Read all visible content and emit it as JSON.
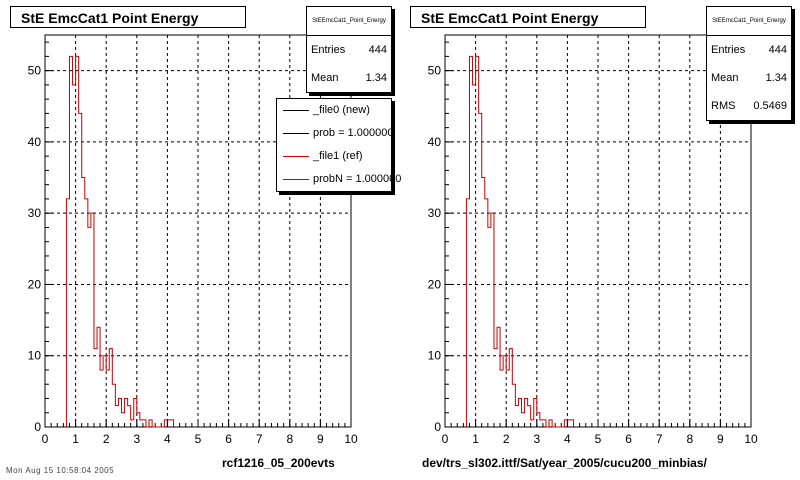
{
  "chart_data": [
    {
      "type": "histogram",
      "title": "StE EmcCat1 Point Energy",
      "stats": {
        "name": "StEEmcCat1_Point_Energy",
        "rows": [
          {
            "label": "Entries",
            "value": "444"
          },
          {
            "label": "Mean",
            "value": "1.34"
          }
        ]
      },
      "xlabel": "rcf1216_05_200evts",
      "xlim": [
        0,
        10
      ],
      "ylim": [
        0,
        55
      ],
      "xticks": [
        0,
        1,
        2,
        3,
        4,
        5,
        6,
        7,
        8,
        9,
        10
      ],
      "yticks": [
        0,
        10,
        20,
        30,
        40,
        50
      ],
      "grid": true,
      "bin_width": 0.1,
      "series": [
        {
          "name": "_file1 (ref)",
          "color": "#cc0000",
          "bins": [
            {
              "x": 0.7,
              "y": 32
            },
            {
              "x": 0.8,
              "y": 52
            },
            {
              "x": 0.9,
              "y": 48
            },
            {
              "x": 1.0,
              "y": 52
            },
            {
              "x": 1.1,
              "y": 44
            },
            {
              "x": 1.2,
              "y": 35
            },
            {
              "x": 1.3,
              "y": 32
            },
            {
              "x": 1.4,
              "y": 28
            },
            {
              "x": 1.5,
              "y": 30
            },
            {
              "x": 1.6,
              "y": 11
            },
            {
              "x": 1.7,
              "y": 14
            },
            {
              "x": 1.8,
              "y": 8
            },
            {
              "x": 1.9,
              "y": 10
            },
            {
              "x": 2.0,
              "y": 8
            },
            {
              "x": 2.1,
              "y": 11
            },
            {
              "x": 2.2,
              "y": 6
            },
            {
              "x": 2.3,
              "y": 3
            },
            {
              "x": 2.4,
              "y": 4
            },
            {
              "x": 2.5,
              "y": 2
            },
            {
              "x": 2.6,
              "y": 4
            },
            {
              "x": 2.7,
              "y": 3
            },
            {
              "x": 2.8,
              "y": 1
            },
            {
              "x": 2.9,
              "y": 4
            },
            {
              "x": 3.0,
              "y": 2
            },
            {
              "x": 3.1,
              "y": 1
            },
            {
              "x": 3.2,
              "y": 1
            },
            {
              "x": 3.3,
              "y": 0
            },
            {
              "x": 3.4,
              "y": 1
            },
            {
              "x": 3.5,
              "y": 0
            },
            {
              "x": 3.6,
              "y": 0
            },
            {
              "x": 3.7,
              "y": 0
            },
            {
              "x": 3.8,
              "y": 0
            },
            {
              "x": 3.9,
              "y": 1
            },
            {
              "x": 4.0,
              "y": 1
            },
            {
              "x": 4.1,
              "y": 1
            }
          ]
        }
      ]
    },
    {
      "type": "histogram",
      "title": "StE EmcCat1 Point Energy",
      "stats": {
        "name": "StEEmcCat1_Point_Energy",
        "rows": [
          {
            "label": "Entries",
            "value": "444"
          },
          {
            "label": "Mean",
            "value": "1.34"
          },
          {
            "label": "RMS",
            "value": "0.5469"
          }
        ]
      },
      "xlabel": "dev/trs_sl302.ittf/Sat/year_2005/cucu200_minbias/",
      "xlim": [
        0,
        10
      ],
      "ylim": [
        0,
        55
      ],
      "xticks": [
        0,
        1,
        2,
        3,
        4,
        5,
        6,
        7,
        8,
        9,
        10
      ],
      "yticks": [
        0,
        10,
        20,
        30,
        40,
        50
      ],
      "grid": true,
      "bin_width": 0.1,
      "series": [
        {
          "color": "#cc0000",
          "bins": [
            {
              "x": 0.7,
              "y": 32
            },
            {
              "x": 0.8,
              "y": 52
            },
            {
              "x": 0.9,
              "y": 48
            },
            {
              "x": 1.0,
              "y": 52
            },
            {
              "x": 1.1,
              "y": 44
            },
            {
              "x": 1.2,
              "y": 35
            },
            {
              "x": 1.3,
              "y": 32
            },
            {
              "x": 1.4,
              "y": 28
            },
            {
              "x": 1.5,
              "y": 30
            },
            {
              "x": 1.6,
              "y": 11
            },
            {
              "x": 1.7,
              "y": 14
            },
            {
              "x": 1.8,
              "y": 8
            },
            {
              "x": 1.9,
              "y": 10
            },
            {
              "x": 2.0,
              "y": 8
            },
            {
              "x": 2.1,
              "y": 11
            },
            {
              "x": 2.2,
              "y": 6
            },
            {
              "x": 2.3,
              "y": 3
            },
            {
              "x": 2.4,
              "y": 4
            },
            {
              "x": 2.5,
              "y": 2
            },
            {
              "x": 2.6,
              "y": 4
            },
            {
              "x": 2.7,
              "y": 3
            },
            {
              "x": 2.8,
              "y": 1
            },
            {
              "x": 2.9,
              "y": 4
            },
            {
              "x": 3.0,
              "y": 2
            },
            {
              "x": 3.1,
              "y": 1
            },
            {
              "x": 3.2,
              "y": 1
            },
            {
              "x": 3.3,
              "y": 0
            },
            {
              "x": 3.4,
              "y": 1
            },
            {
              "x": 3.5,
              "y": 0
            },
            {
              "x": 3.6,
              "y": 0
            },
            {
              "x": 3.7,
              "y": 0
            },
            {
              "x": 3.8,
              "y": 0
            },
            {
              "x": 3.9,
              "y": 1
            },
            {
              "x": 4.0,
              "y": 1
            },
            {
              "x": 4.1,
              "y": 1
            }
          ]
        }
      ]
    }
  ],
  "legend": [
    {
      "label": "_file0 (new)",
      "color": "#000000"
    },
    {
      "label": "prob = 1.000000",
      "color": "#000000"
    },
    {
      "label": "_file1 (ref)",
      "color": "#cc0000"
    },
    {
      "label": "probN = 1.000000",
      "color": "#cc0000"
    }
  ],
  "footer_note": "Mon Aug 15 10:58:04 2005"
}
